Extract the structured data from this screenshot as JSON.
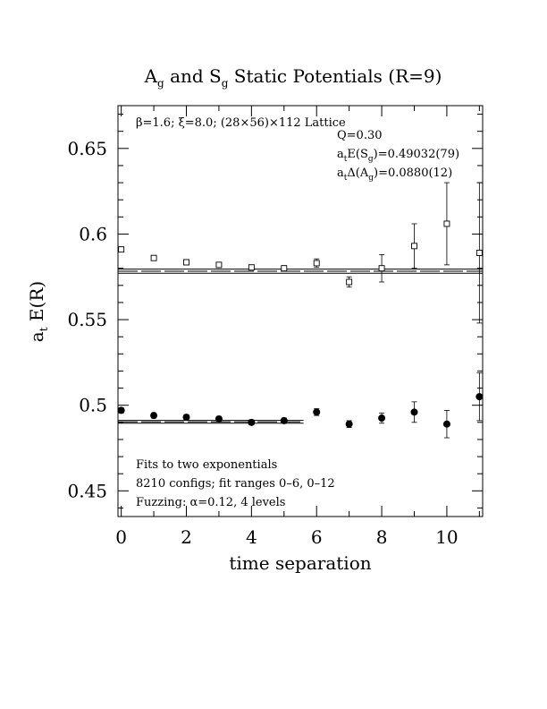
{
  "chart_data": {
    "type": "scatter",
    "title": {
      "parts": [
        {
          "t": "A"
        },
        {
          "t": "g",
          "sub": true
        },
        {
          "t": " and S"
        },
        {
          "t": "g",
          "sub": true
        },
        {
          "t": " Static Potentials (R=9)"
        }
      ]
    },
    "xlabel": "time separation",
    "ylabel": {
      "parts": [
        {
          "t": "a"
        },
        {
          "t": "t",
          "sub": true
        },
        {
          "t": " E(R)"
        }
      ]
    },
    "xlim": [
      -0.1,
      11.1
    ],
    "ylim": [
      0.435,
      0.675
    ],
    "x_ticks": [
      0,
      2,
      4,
      6,
      8,
      10
    ],
    "x_tick_labels": [
      "0",
      "2",
      "4",
      "6",
      "8",
      "10"
    ],
    "y_ticks": [
      0.45,
      0.5,
      0.55,
      0.6,
      0.65
    ],
    "y_tick_labels": [
      "0.45",
      "0.5",
      "0.55",
      "0.6",
      "0.65"
    ],
    "y_minor_step": 0.01,
    "x_minor_step": 1,
    "series": [
      {
        "marker": "open-square",
        "points": [
          {
            "x": 0,
            "y": 0.591,
            "err": 0.0015
          },
          {
            "x": 1,
            "y": 0.586,
            "err": 0.0015
          },
          {
            "x": 2,
            "y": 0.5835,
            "err": 0.0015
          },
          {
            "x": 3,
            "y": 0.582,
            "err": 0.0015
          },
          {
            "x": 4,
            "y": 0.5805,
            "err": 0.0015
          },
          {
            "x": 5,
            "y": 0.58,
            "err": 0.0015
          },
          {
            "x": 6,
            "y": 0.583,
            "err": 0.0025
          },
          {
            "x": 7,
            "y": 0.572,
            "err": 0.003
          },
          {
            "x": 8,
            "y": 0.58,
            "err": 0.008
          },
          {
            "x": 9,
            "y": 0.593,
            "err": 0.013
          },
          {
            "x": 10,
            "y": 0.606,
            "err": 0.024
          },
          {
            "x": 11,
            "y": 0.589,
            "err": 0.041
          }
        ],
        "fit_value": 0.5783,
        "fit_band": 0.0012,
        "fit_range": [
          -0.1,
          11.1
        ]
      },
      {
        "marker": "filled-circle",
        "points": [
          {
            "x": 0,
            "y": 0.497,
            "err": 0.0015
          },
          {
            "x": 1,
            "y": 0.494,
            "err": 0.0015
          },
          {
            "x": 2,
            "y": 0.493,
            "err": 0.0015
          },
          {
            "x": 3,
            "y": 0.492,
            "err": 0.0015
          },
          {
            "x": 4,
            "y": 0.49,
            "err": 0.0015
          },
          {
            "x": 5,
            "y": 0.491,
            "err": 0.0015
          },
          {
            "x": 6,
            "y": 0.496,
            "err": 0.002
          },
          {
            "x": 7,
            "y": 0.489,
            "err": 0.002
          },
          {
            "x": 8,
            "y": 0.4925,
            "err": 0.003
          },
          {
            "x": 9,
            "y": 0.496,
            "err": 0.006
          },
          {
            "x": 10,
            "y": 0.489,
            "err": 0.008
          },
          {
            "x": 11,
            "y": 0.505,
            "err": 0.014
          }
        ],
        "fit_value": 0.49032,
        "fit_band": 0.0008,
        "fit_range": [
          -0.1,
          5.6
        ]
      }
    ],
    "annotations_top_left": [
      {
        "parts": [
          {
            "t": "β=1.6; ξ=8.0; (28×56)×112 Lattice"
          }
        ]
      }
    ],
    "annotations_top_right": [
      {
        "parts": [
          {
            "t": "Q=0.30"
          }
        ]
      },
      {
        "parts": [
          {
            "t": "a"
          },
          {
            "t": "t",
            "sub": true
          },
          {
            "t": "E(S"
          },
          {
            "t": "g",
            "sub": true
          },
          {
            "t": ")=0.49032(79)"
          }
        ]
      },
      {
        "parts": [
          {
            "t": "a"
          },
          {
            "t": "t",
            "sub": true
          },
          {
            "t": "Δ(A"
          },
          {
            "t": "g",
            "sub": true
          },
          {
            "t": ")=0.0880(12)"
          }
        ]
      }
    ],
    "annotations_bottom_left": [
      {
        "parts": [
          {
            "t": "Fits to two exponentials"
          }
        ]
      },
      {
        "parts": [
          {
            "t": "8210 configs; fit ranges 0–6, 0–12"
          }
        ]
      },
      {
        "parts": [
          {
            "t": "Fuzzing: α=0.12, 4 levels"
          }
        ]
      }
    ]
  }
}
